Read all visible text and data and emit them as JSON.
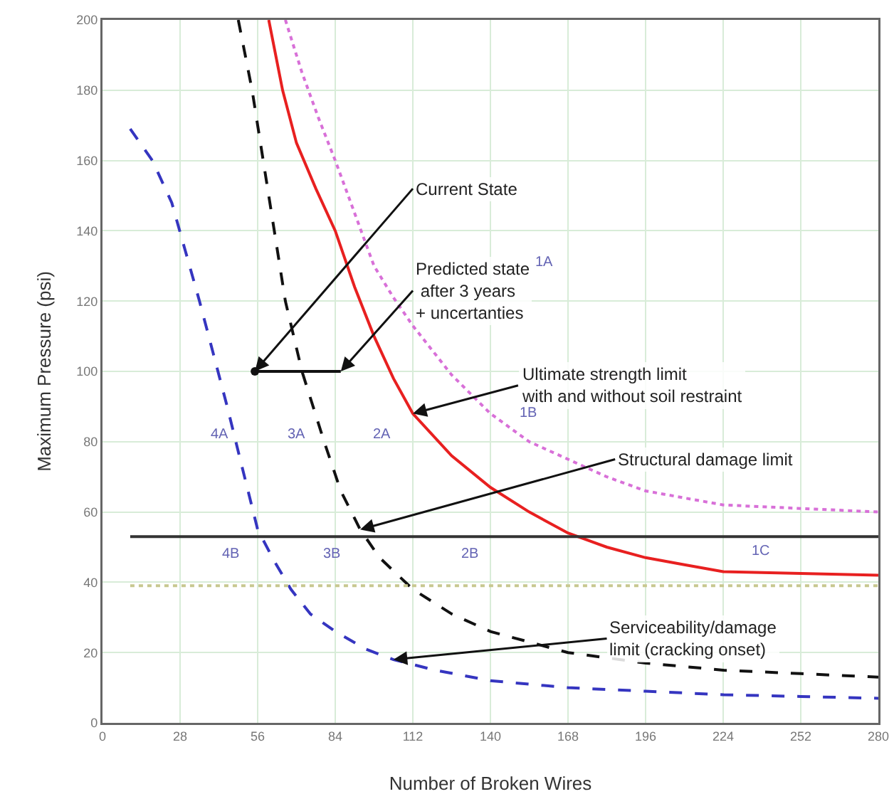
{
  "chart_data": {
    "type": "line",
    "xlabel": "Number of Broken Wires",
    "ylabel": "Maximum Pressure (psi)",
    "xlim": [
      0,
      280
    ],
    "xticks": [
      0,
      28,
      56,
      84,
      112,
      140,
      168,
      196,
      224,
      252,
      280
    ],
    "ylim": [
      0,
      200
    ],
    "yticks": [
      0,
      20,
      40,
      60,
      80,
      100,
      120,
      140,
      160,
      180,
      200
    ],
    "grid": true,
    "marker": "none",
    "series": [
      {
        "color": "#3535c0",
        "line_style": "dashed",
        "x": [
          10,
          18,
          25,
          30,
          35,
          40,
          45,
          50,
          56,
          62,
          68,
          75,
          84,
          95,
          105,
          120,
          140,
          168,
          196,
          224,
          252,
          280
        ],
        "values": [
          169,
          160,
          148,
          134,
          120,
          105,
          90,
          74,
          55,
          46,
          38,
          31,
          26,
          21,
          18,
          15,
          12,
          10,
          9,
          8,
          7.5,
          7
        ]
      },
      {
        "color": "#111111",
        "line_style": "dashed",
        "x": [
          49,
          54,
          58,
          62,
          66,
          72,
          80,
          86,
          93,
          100,
          112,
          126,
          140,
          168,
          196,
          224,
          252,
          280
        ],
        "values": [
          200,
          180,
          160,
          140,
          120,
          100,
          80,
          66,
          55,
          47,
          38,
          31,
          26,
          20,
          17,
          15,
          14,
          13
        ]
      },
      {
        "color": "#e82020",
        "line_style": "solid",
        "x": [
          60,
          65,
          70,
          77,
          84,
          91,
          98,
          105,
          112,
          126,
          140,
          154,
          168,
          182,
          196,
          210,
          224,
          252,
          280
        ],
        "values": [
          200,
          180,
          165,
          152,
          140,
          124,
          110,
          98,
          88,
          76,
          67,
          60,
          54,
          50,
          47,
          45,
          43,
          42.5,
          42
        ]
      },
      {
        "color": "#d870d8",
        "line_style": "dotted",
        "x": [
          66,
          72,
          78,
          84,
          91,
          98,
          105,
          112,
          126,
          140,
          154,
          168,
          182,
          196,
          210,
          224,
          252,
          280
        ],
        "values": [
          200,
          185,
          172,
          160,
          145,
          130,
          121,
          113,
          99,
          88,
          80,
          75,
          70,
          66,
          64,
          62,
          61,
          60
        ]
      },
      {
        "color": "#333333",
        "line_style": "solid",
        "x": [
          10,
          280
        ],
        "values": [
          53,
          53
        ]
      },
      {
        "color": "#c8c890",
        "line_style": "dotted",
        "x": [
          10,
          280
        ],
        "values": [
          39,
          39
        ]
      },
      {
        "color": "#111111",
        "line_style": "solid",
        "marker": "circle",
        "x": [
          55
        ],
        "values": [
          100
        ]
      },
      {
        "color": "#111111",
        "line_style": "solid",
        "x": [
          55,
          86
        ],
        "values": [
          100,
          100
        ]
      }
    ],
    "annotations": [
      {
        "text": "Current State",
        "x": 55,
        "y": 100
      },
      {
        "text": "Predicted state\n after 3 years\n+ uncertanties",
        "x": 86,
        "y": 100
      },
      {
        "text": "Ultimate strength limit\nwith and without soil restraint",
        "x": 112,
        "y": 88
      },
      {
        "text": "Structural damage limit",
        "x": 93,
        "y": 55
      },
      {
        "text": "Serviceability/damage\nlimit (cracking onset)",
        "x": 105,
        "y": 18
      },
      "1A",
      "1B",
      "1C",
      "2A",
      "2B",
      "3A",
      "3B",
      "4A",
      "4B"
    ]
  }
}
